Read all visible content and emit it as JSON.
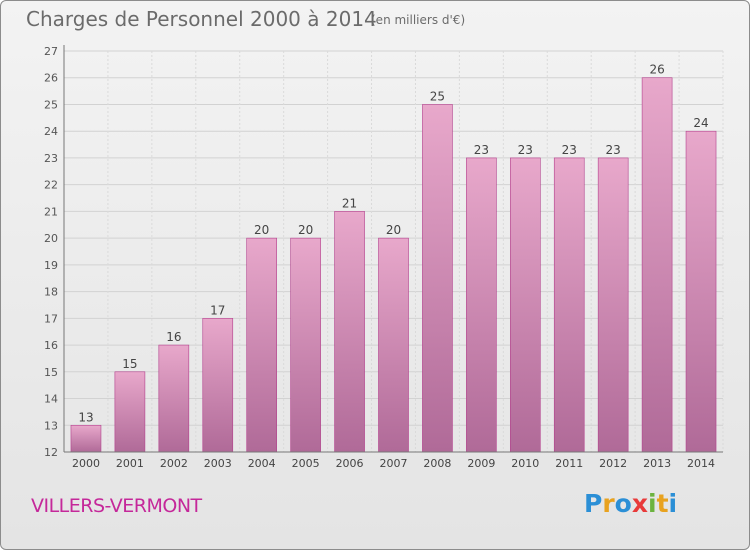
{
  "header": {
    "title": "Charges de Personnel 2000 à 2014",
    "subtitle": "(en milliers d'€)"
  },
  "footer": {
    "place": "VILLERS-VERMONT",
    "logo_letters": [
      {
        "char": "P",
        "color": "#2b8fd6"
      },
      {
        "char": "r",
        "color": "#e8a21f"
      },
      {
        "char": "o",
        "color": "#2b8fd6"
      },
      {
        "char": "x",
        "color": "#e83a3a"
      },
      {
        "char": "i",
        "color": "#6cb33f"
      },
      {
        "char": "t",
        "color": "#e8a21f"
      },
      {
        "char": "i",
        "color": "#2b8fd6"
      }
    ]
  },
  "chart_data": {
    "type": "bar",
    "title": "Charges de Personnel 2000 à 2014",
    "subtitle": "(en milliers d'€)",
    "categories": [
      "2000",
      "2001",
      "2002",
      "2003",
      "2004",
      "2005",
      "2006",
      "2007",
      "2008",
      "2009",
      "2010",
      "2011",
      "2012",
      "2013",
      "2014"
    ],
    "values": [
      13,
      15,
      16,
      17,
      20,
      20,
      21,
      20,
      25,
      23,
      23,
      23,
      23,
      26,
      24
    ],
    "ylim": [
      12,
      27
    ],
    "yticks": [
      12,
      13,
      14,
      15,
      16,
      17,
      18,
      19,
      20,
      21,
      22,
      23,
      24,
      25,
      26,
      27
    ],
    "grid": true,
    "bar_color_top": "#e8a8cb",
    "bar_color_bottom": "#b06a98",
    "bar_stroke": "#b3408d"
  }
}
